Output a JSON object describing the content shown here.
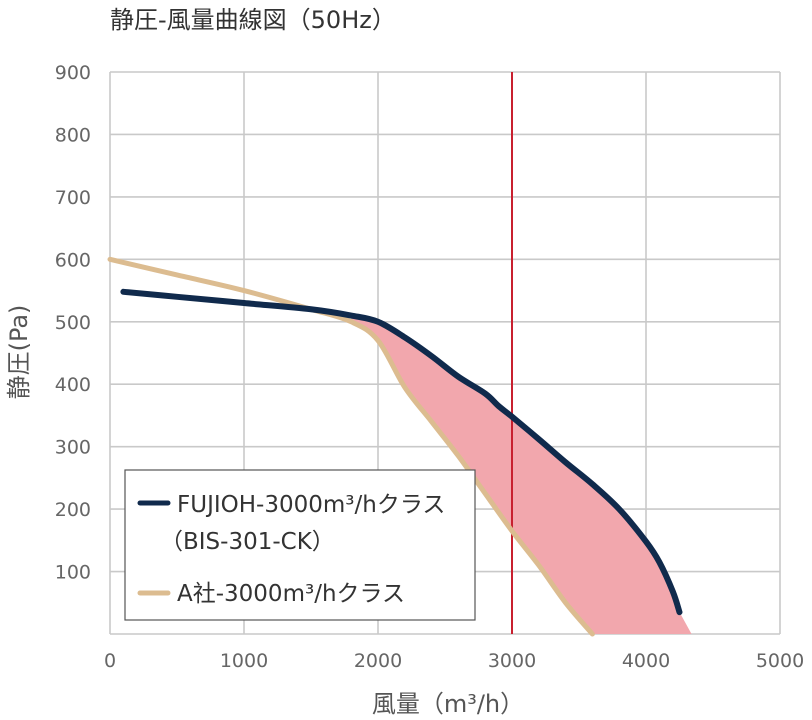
{
  "chart_data": {
    "type": "line",
    "title": "静圧-風量曲線図（50Hz）",
    "xlabel": "風量（m³/h）",
    "ylabel": "静圧(Pa)",
    "xlim": [
      0,
      5000
    ],
    "ylim": [
      0,
      900
    ],
    "x_ticks": [
      "0",
      "1000",
      "2000",
      "3000",
      "4000",
      "5000"
    ],
    "y_ticks": [
      "100",
      "200",
      "300",
      "400",
      "500",
      "600",
      "700",
      "800",
      "900"
    ],
    "grid": true,
    "legend_position": "bottom-left",
    "reference_line": {
      "x": 3000,
      "color": "#c8202f"
    },
    "fill_between_series": {
      "color": "#f2a7ad"
    },
    "series": [
      {
        "name": "FUJIOH-3000m³/hクラス",
        "name_line2": "（BIS-301-CK）",
        "color": "#102a4c",
        "x": [
          100,
          500,
          1000,
          1500,
          1800,
          2000,
          2200,
          2400,
          2600,
          2800,
          2900,
          3000,
          3200,
          3400,
          3600,
          3800,
          4000,
          4100,
          4200,
          4250
        ],
        "y": [
          548,
          540,
          530,
          520,
          510,
          500,
          475,
          445,
          412,
          385,
          365,
          348,
          312,
          275,
          240,
          200,
          148,
          115,
          68,
          35
        ]
      },
      {
        "name": "A社-3000m³/hクラス",
        "color": "#dcbc90",
        "x": [
          0,
          500,
          1000,
          1500,
          1800,
          2000,
          2200,
          2400,
          2600,
          2800,
          3000,
          3200,
          3400,
          3600
        ],
        "y": [
          600,
          575,
          550,
          520,
          500,
          470,
          395,
          340,
          285,
          225,
          165,
          110,
          50,
          0
        ]
      }
    ]
  }
}
